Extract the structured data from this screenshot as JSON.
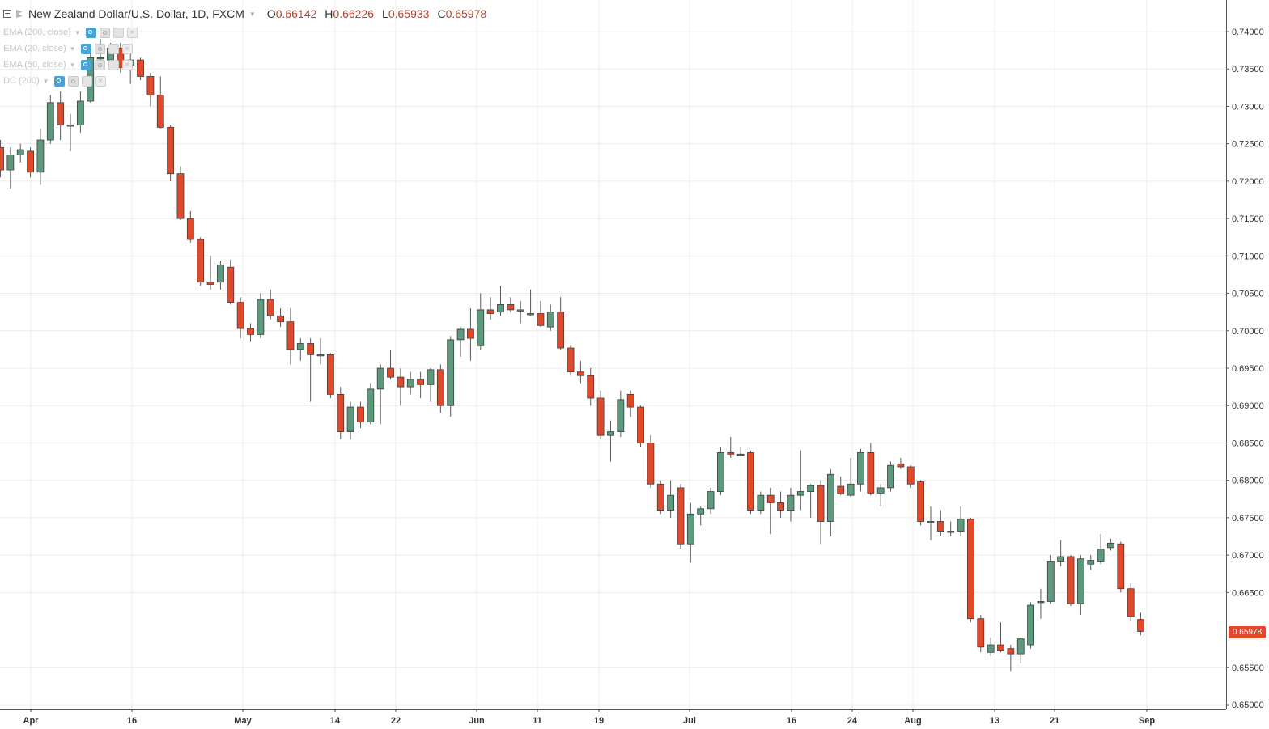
{
  "header": {
    "symbol_title": "New Zealand Dollar/U.S. Dollar, 1D, FXCM",
    "ohlc": [
      {
        "key": "O",
        "value": "0.66142"
      },
      {
        "key": "H",
        "value": "0.66226"
      },
      {
        "key": "L",
        "value": "0.65933"
      },
      {
        "key": "C",
        "value": "0.65978"
      }
    ]
  },
  "studies": [
    {
      "label": "EMA (200, close)"
    },
    {
      "label": "EMA (20, close)"
    },
    {
      "label": "EMA (50, close)"
    },
    {
      "label": "DC (200)"
    }
  ],
  "price_axis": {
    "labels": [
      "0.74000",
      "0.73500",
      "0.73000",
      "0.72500",
      "0.72000",
      "0.71500",
      "0.71000",
      "0.70500",
      "0.70000",
      "0.69500",
      "0.69000",
      "0.68500",
      "0.68000",
      "0.67500",
      "0.67000",
      "0.66500",
      "0.65500",
      "0.65000"
    ],
    "current_price": "0.65978"
  },
  "time_axis": {
    "labels": [
      "Apr",
      "16",
      "May",
      "14",
      "22",
      "Jun",
      "11",
      "19",
      "Jul",
      "16",
      "24",
      "Aug",
      "13",
      "21",
      "Sep"
    ]
  },
  "colors": {
    "up": "#5b9a7d",
    "down": "#e2492b",
    "wick": "#5a5a5a",
    "grid": "#ececec",
    "current_price_bg": "#e2492b"
  },
  "chart_data": {
    "type": "candlestick",
    "title": "New Zealand Dollar/U.S. Dollar, 1D, FXCM",
    "ylim": [
      0.65,
      0.7415
    ],
    "candles": [
      {
        "o": 0.7245,
        "h": 0.7255,
        "l": 0.7205,
        "c": 0.7215
      },
      {
        "o": 0.7215,
        "h": 0.7245,
        "l": 0.719,
        "c": 0.7235
      },
      {
        "o": 0.7235,
        "h": 0.725,
        "l": 0.7225,
        "c": 0.7242
      },
      {
        "o": 0.724,
        "h": 0.7245,
        "l": 0.7205,
        "c": 0.7212
      },
      {
        "o": 0.7212,
        "h": 0.727,
        "l": 0.7195,
        "c": 0.7255
      },
      {
        "o": 0.7255,
        "h": 0.7315,
        "l": 0.725,
        "c": 0.7305
      },
      {
        "o": 0.7305,
        "h": 0.732,
        "l": 0.7255,
        "c": 0.7275
      },
      {
        "o": 0.7275,
        "h": 0.729,
        "l": 0.724,
        "c": 0.7275
      },
      {
        "o": 0.7275,
        "h": 0.732,
        "l": 0.7265,
        "c": 0.7307
      },
      {
        "o": 0.7307,
        "h": 0.7375,
        "l": 0.7305,
        "c": 0.7365
      },
      {
        "o": 0.7365,
        "h": 0.739,
        "l": 0.735,
        "c": 0.7365
      },
      {
        "o": 0.7362,
        "h": 0.7385,
        "l": 0.735,
        "c": 0.7378
      },
      {
        "o": 0.7378,
        "h": 0.7385,
        "l": 0.7345,
        "c": 0.7352
      },
      {
        "o": 0.7355,
        "h": 0.737,
        "l": 0.733,
        "c": 0.7362
      },
      {
        "o": 0.7362,
        "h": 0.7365,
        "l": 0.7335,
        "c": 0.734
      },
      {
        "o": 0.734,
        "h": 0.7345,
        "l": 0.73,
        "c": 0.7315
      },
      {
        "o": 0.7315,
        "h": 0.734,
        "l": 0.727,
        "c": 0.7272
      },
      {
        "o": 0.7272,
        "h": 0.7275,
        "l": 0.72,
        "c": 0.721
      },
      {
        "o": 0.721,
        "h": 0.722,
        "l": 0.7148,
        "c": 0.715
      },
      {
        "o": 0.715,
        "h": 0.716,
        "l": 0.7118,
        "c": 0.7122
      },
      {
        "o": 0.7122,
        "h": 0.7125,
        "l": 0.706,
        "c": 0.7065
      },
      {
        "o": 0.7065,
        "h": 0.71,
        "l": 0.7055,
        "c": 0.7062
      },
      {
        "o": 0.7065,
        "h": 0.7093,
        "l": 0.7055,
        "c": 0.7088
      },
      {
        "o": 0.7085,
        "h": 0.7095,
        "l": 0.7035,
        "c": 0.7038
      },
      {
        "o": 0.7038,
        "h": 0.7045,
        "l": 0.699,
        "c": 0.7003
      },
      {
        "o": 0.7003,
        "h": 0.701,
        "l": 0.6985,
        "c": 0.6995
      },
      {
        "o": 0.6995,
        "h": 0.705,
        "l": 0.699,
        "c": 0.7042
      },
      {
        "o": 0.7042,
        "h": 0.7055,
        "l": 0.7015,
        "c": 0.702
      },
      {
        "o": 0.702,
        "h": 0.703,
        "l": 0.7005,
        "c": 0.7012
      },
      {
        "o": 0.7012,
        "h": 0.703,
        "l": 0.6955,
        "c": 0.6975
      },
      {
        "o": 0.6975,
        "h": 0.699,
        "l": 0.696,
        "c": 0.6983
      },
      {
        "o": 0.6983,
        "h": 0.699,
        "l": 0.6905,
        "c": 0.6968
      },
      {
        "o": 0.6968,
        "h": 0.699,
        "l": 0.6955,
        "c": 0.6968
      },
      {
        "o": 0.6968,
        "h": 0.697,
        "l": 0.691,
        "c": 0.6915
      },
      {
        "o": 0.6915,
        "h": 0.6925,
        "l": 0.6855,
        "c": 0.6865
      },
      {
        "o": 0.6865,
        "h": 0.6905,
        "l": 0.6855,
        "c": 0.6898
      },
      {
        "o": 0.6898,
        "h": 0.6905,
        "l": 0.687,
        "c": 0.6878
      },
      {
        "o": 0.6878,
        "h": 0.693,
        "l": 0.6875,
        "c": 0.6922
      },
      {
        "o": 0.6922,
        "h": 0.6955,
        "l": 0.6875,
        "c": 0.695
      },
      {
        "o": 0.695,
        "h": 0.6975,
        "l": 0.6935,
        "c": 0.6938
      },
      {
        "o": 0.6938,
        "h": 0.695,
        "l": 0.69,
        "c": 0.6925
      },
      {
        "o": 0.6925,
        "h": 0.6945,
        "l": 0.6915,
        "c": 0.6935
      },
      {
        "o": 0.6935,
        "h": 0.6945,
        "l": 0.691,
        "c": 0.6928
      },
      {
        "o": 0.6928,
        "h": 0.695,
        "l": 0.6905,
        "c": 0.6948
      },
      {
        "o": 0.6948,
        "h": 0.6955,
        "l": 0.689,
        "c": 0.69
      },
      {
        "o": 0.69,
        "h": 0.6993,
        "l": 0.6885,
        "c": 0.6988
      },
      {
        "o": 0.6988,
        "h": 0.7005,
        "l": 0.6965,
        "c": 0.7002
      },
      {
        "o": 0.7002,
        "h": 0.703,
        "l": 0.696,
        "c": 0.699
      },
      {
        "o": 0.698,
        "h": 0.705,
        "l": 0.6975,
        "c": 0.7028
      },
      {
        "o": 0.7028,
        "h": 0.7045,
        "l": 0.7015,
        "c": 0.7023
      },
      {
        "o": 0.7025,
        "h": 0.706,
        "l": 0.702,
        "c": 0.7035
      },
      {
        "o": 0.7035,
        "h": 0.7045,
        "l": 0.7025,
        "c": 0.7028
      },
      {
        "o": 0.7028,
        "h": 0.704,
        "l": 0.701,
        "c": 0.7028
      },
      {
        "o": 0.7023,
        "h": 0.7055,
        "l": 0.702,
        "c": 0.7023
      },
      {
        "o": 0.7023,
        "h": 0.704,
        "l": 0.7005,
        "c": 0.7007
      },
      {
        "o": 0.7005,
        "h": 0.7035,
        "l": 0.7,
        "c": 0.7025
      },
      {
        "o": 0.7025,
        "h": 0.7045,
        "l": 0.6975,
        "c": 0.6977
      },
      {
        "o": 0.6977,
        "h": 0.698,
        "l": 0.694,
        "c": 0.6945
      },
      {
        "o": 0.6945,
        "h": 0.696,
        "l": 0.693,
        "c": 0.694
      },
      {
        "o": 0.694,
        "h": 0.695,
        "l": 0.69,
        "c": 0.691
      },
      {
        "o": 0.691,
        "h": 0.692,
        "l": 0.6855,
        "c": 0.686
      },
      {
        "o": 0.686,
        "h": 0.688,
        "l": 0.6825,
        "c": 0.6865
      },
      {
        "o": 0.6865,
        "h": 0.692,
        "l": 0.6858,
        "c": 0.6908
      },
      {
        "o": 0.6915,
        "h": 0.692,
        "l": 0.6885,
        "c": 0.6898
      },
      {
        "o": 0.6898,
        "h": 0.69,
        "l": 0.6845,
        "c": 0.685
      },
      {
        "o": 0.685,
        "h": 0.686,
        "l": 0.679,
        "c": 0.6795
      },
      {
        "o": 0.6795,
        "h": 0.68,
        "l": 0.6755,
        "c": 0.676
      },
      {
        "o": 0.676,
        "h": 0.68,
        "l": 0.675,
        "c": 0.678
      },
      {
        "o": 0.679,
        "h": 0.6795,
        "l": 0.6708,
        "c": 0.6715
      },
      {
        "o": 0.6715,
        "h": 0.677,
        "l": 0.669,
        "c": 0.6755
      },
      {
        "o": 0.6755,
        "h": 0.6765,
        "l": 0.674,
        "c": 0.6762
      },
      {
        "o": 0.6762,
        "h": 0.679,
        "l": 0.6755,
        "c": 0.6785
      },
      {
        "o": 0.6785,
        "h": 0.6845,
        "l": 0.678,
        "c": 0.6837
      },
      {
        "o": 0.6837,
        "h": 0.6858,
        "l": 0.683,
        "c": 0.6835
      },
      {
        "o": 0.6835,
        "h": 0.6845,
        "l": 0.6833,
        "c": 0.6835
      },
      {
        "o": 0.6837,
        "h": 0.684,
        "l": 0.6755,
        "c": 0.676
      },
      {
        "o": 0.676,
        "h": 0.6785,
        "l": 0.6755,
        "c": 0.678
      },
      {
        "o": 0.678,
        "h": 0.679,
        "l": 0.6728,
        "c": 0.677
      },
      {
        "o": 0.677,
        "h": 0.6785,
        "l": 0.675,
        "c": 0.676
      },
      {
        "o": 0.676,
        "h": 0.679,
        "l": 0.6745,
        "c": 0.678
      },
      {
        "o": 0.678,
        "h": 0.684,
        "l": 0.676,
        "c": 0.6785
      },
      {
        "o": 0.6785,
        "h": 0.6795,
        "l": 0.675,
        "c": 0.6793
      },
      {
        "o": 0.6793,
        "h": 0.68,
        "l": 0.6715,
        "c": 0.6745
      },
      {
        "o": 0.6745,
        "h": 0.6815,
        "l": 0.6725,
        "c": 0.6808
      },
      {
        "o": 0.6792,
        "h": 0.6805,
        "l": 0.678,
        "c": 0.6782
      },
      {
        "o": 0.678,
        "h": 0.683,
        "l": 0.6778,
        "c": 0.6795
      },
      {
        "o": 0.6795,
        "h": 0.6842,
        "l": 0.6785,
        "c": 0.6837
      },
      {
        "o": 0.6837,
        "h": 0.685,
        "l": 0.678,
        "c": 0.6783
      },
      {
        "o": 0.6783,
        "h": 0.6795,
        "l": 0.6765,
        "c": 0.679
      },
      {
        "o": 0.679,
        "h": 0.6825,
        "l": 0.6785,
        "c": 0.682
      },
      {
        "o": 0.6822,
        "h": 0.683,
        "l": 0.6815,
        "c": 0.6818
      },
      {
        "o": 0.6818,
        "h": 0.682,
        "l": 0.679,
        "c": 0.6795
      },
      {
        "o": 0.6798,
        "h": 0.68,
        "l": 0.674,
        "c": 0.6745
      },
      {
        "o": 0.6745,
        "h": 0.6765,
        "l": 0.672,
        "c": 0.6745
      },
      {
        "o": 0.6745,
        "h": 0.676,
        "l": 0.6725,
        "c": 0.6732
      },
      {
        "o": 0.6732,
        "h": 0.6745,
        "l": 0.6725,
        "c": 0.6732
      },
      {
        "o": 0.6732,
        "h": 0.6765,
        "l": 0.6725,
        "c": 0.6748
      },
      {
        "o": 0.6748,
        "h": 0.675,
        "l": 0.661,
        "c": 0.6615
      },
      {
        "o": 0.6615,
        "h": 0.662,
        "l": 0.657,
        "c": 0.6577
      },
      {
        "o": 0.657,
        "h": 0.659,
        "l": 0.6565,
        "c": 0.658
      },
      {
        "o": 0.658,
        "h": 0.661,
        "l": 0.657,
        "c": 0.6573
      },
      {
        "o": 0.6575,
        "h": 0.658,
        "l": 0.6545,
        "c": 0.6568
      },
      {
        "o": 0.6568,
        "h": 0.659,
        "l": 0.6555,
        "c": 0.6588
      },
      {
        "o": 0.658,
        "h": 0.6637,
        "l": 0.6575,
        "c": 0.6633
      },
      {
        "o": 0.6637,
        "h": 0.6655,
        "l": 0.6615,
        "c": 0.6638
      },
      {
        "o": 0.6638,
        "h": 0.67,
        "l": 0.6635,
        "c": 0.6692
      },
      {
        "o": 0.6692,
        "h": 0.672,
        "l": 0.6685,
        "c": 0.6698
      },
      {
        "o": 0.6698,
        "h": 0.67,
        "l": 0.6632,
        "c": 0.6635
      },
      {
        "o": 0.6635,
        "h": 0.67,
        "l": 0.662,
        "c": 0.6695
      },
      {
        "o": 0.6688,
        "h": 0.67,
        "l": 0.668,
        "c": 0.6693
      },
      {
        "o": 0.6692,
        "h": 0.6728,
        "l": 0.6688,
        "c": 0.6708
      },
      {
        "o": 0.671,
        "h": 0.6722,
        "l": 0.6706,
        "c": 0.6716
      },
      {
        "o": 0.6715,
        "h": 0.6718,
        "l": 0.665,
        "c": 0.6655
      },
      {
        "o": 0.6655,
        "h": 0.6662,
        "l": 0.6612,
        "c": 0.6618
      },
      {
        "o": 0.6614,
        "h": 0.6623,
        "l": 0.6593,
        "c": 0.6598
      }
    ]
  }
}
